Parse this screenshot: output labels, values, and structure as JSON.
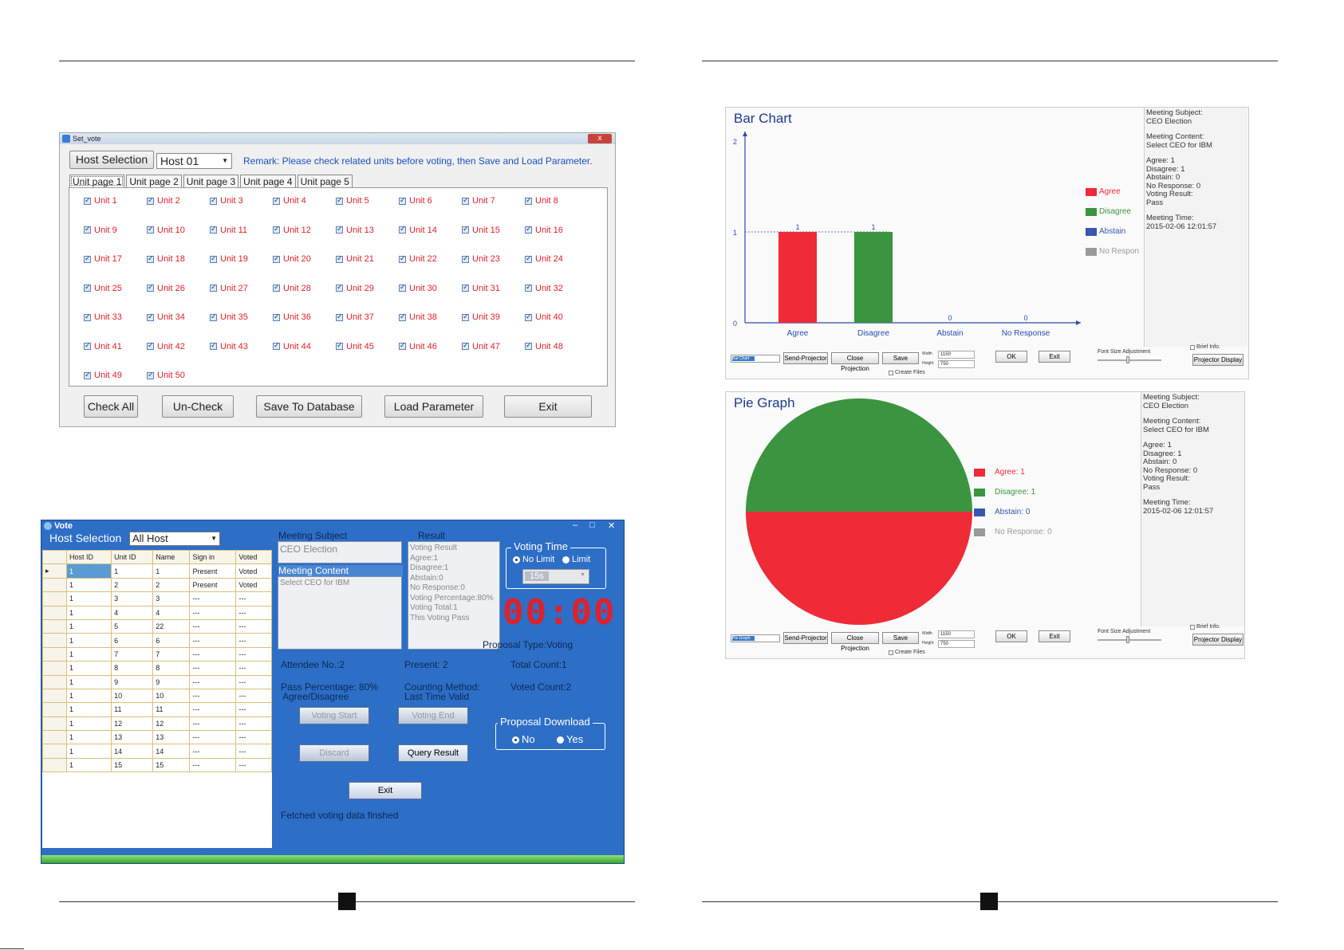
{
  "setvote": {
    "title": "Set_vote",
    "close": "x",
    "host_selection_button": "Host Selection",
    "host_value": "Host 01",
    "remark": "Remark: Please check related units before voting, then Save and Load  Parameter.",
    "tabs": [
      "Unit page 1",
      "Unit page 2",
      "Unit page 3",
      "Unit page 4",
      "Unit page 5"
    ],
    "units": [
      "Unit 1",
      "Unit 2",
      "Unit 3",
      "Unit 4",
      "Unit 5",
      "Unit 6",
      "Unit 7",
      "Unit 8",
      "Unit 9",
      "Unit 10",
      "Unit 11",
      "Unit 12",
      "Unit 13",
      "Unit 14",
      "Unit 15",
      "Unit 16",
      "Unit 17",
      "Unit 18",
      "Unit 19",
      "Unit 20",
      "Unit 21",
      "Unit 22",
      "Unit 23",
      "Unit 24",
      "Unit 25",
      "Unit 26",
      "Unit 27",
      "Unit 28",
      "Unit 29",
      "Unit 30",
      "Unit 31",
      "Unit 32",
      "Unit 33",
      "Unit 34",
      "Unit 35",
      "Unit 36",
      "Unit 37",
      "Unit 38",
      "Unit 39",
      "Unit 40",
      "Unit 41",
      "Unit 42",
      "Unit 43",
      "Unit 44",
      "Unit 45",
      "Unit 46",
      "Unit 47",
      "Unit 48",
      "Unit 49",
      "Unit 50"
    ],
    "buttons": {
      "check_all": "Check All",
      "uncheck": "Un-Check",
      "save_db": "Save To Database",
      "load_param": "Load Parameter",
      "exit": "Exit"
    }
  },
  "vote": {
    "title": "Vote",
    "win_controls": [
      "–",
      "□",
      "✕"
    ],
    "host_selection_label": "Host Selection",
    "host_value": "All Host",
    "grid_headers": [
      "Host ID",
      "Unit ID",
      "Name",
      "Sign in",
      "Voted"
    ],
    "grid_rows": [
      [
        "1",
        "1",
        "1",
        "Present",
        "Voted"
      ],
      [
        "1",
        "2",
        "2",
        "Present",
        "Voted"
      ],
      [
        "1",
        "3",
        "3",
        "---",
        "---"
      ],
      [
        "1",
        "4",
        "4",
        "---",
        "---"
      ],
      [
        "1",
        "5",
        "22",
        "---",
        "---"
      ],
      [
        "1",
        "6",
        "6",
        "---",
        "---"
      ],
      [
        "1",
        "7",
        "7",
        "---",
        "---"
      ],
      [
        "1",
        "8",
        "8",
        "---",
        "---"
      ],
      [
        "1",
        "9",
        "9",
        "---",
        "---"
      ],
      [
        "1",
        "10",
        "10",
        "---",
        "---"
      ],
      [
        "1",
        "11",
        "11",
        "---",
        "---"
      ],
      [
        "1",
        "12",
        "12",
        "---",
        "---"
      ],
      [
        "1",
        "13",
        "13",
        "---",
        "---"
      ],
      [
        "1",
        "14",
        "14",
        "---",
        "---"
      ],
      [
        "1",
        "15",
        "15",
        "---",
        "---"
      ]
    ],
    "meeting_subject_label": "Meeting Subject",
    "meeting_subject": "CEO Election",
    "meeting_content_label": "Meeting Content",
    "meeting_content": "Select CEO for IBM",
    "result_label": "Result",
    "result_lines": [
      "Voting Result",
      "Agree:1",
      "Disagree:1",
      "Abstain:0",
      "No Response:0",
      "Voting Percentage:80%",
      "Voting Total:1",
      "This Voting Pass"
    ],
    "voting_time_label": "Voting Time",
    "no_limit": "No Limit",
    "limit": "Limit",
    "time_value": "15s",
    "timer": "00:00",
    "proposal_type": "Proposal Type:Voting",
    "attendee_no": "Attendee No.:2",
    "present": "Present: 2",
    "total_count": "Total Count:1",
    "pass_percentage": "Pass Percentage:  80%",
    "pass_type": "Agree/Disagree",
    "counting_method": "Counting Method:",
    "counting_value": "Last Time Valid",
    "voted_count": "Voted Count:2",
    "btn_voting_start": "Voting Start",
    "btn_voting_end": "Voting End",
    "btn_discard": "Discard",
    "btn_query_result": "Query Result",
    "proposal_download_label": "Proposal Download",
    "opt_no": "No",
    "opt_yes": "Yes",
    "btn_exit": "Exit",
    "status": "Fetched voting data finshed"
  },
  "bar_window": {
    "title": "Bar Chart",
    "info": {
      "subject_label": "Meeting Subject:",
      "subject": "CEO Election",
      "content_label": "Meeting Content:",
      "content": "Select CEO for IBM",
      "agree": "Agree: 1",
      "disagree": "Disagree: 1",
      "abstain": "Abstain: 0",
      "no_response": "No Response: 0",
      "result_label": "Voting Result:",
      "result": "Pass",
      "time_label": "Meeting Time:",
      "time": "2015-02-06 12:01:57"
    },
    "toolbar": {
      "select": "Bar Chart",
      "send": "Send-Projector",
      "close": "Close Projection",
      "save": "Save",
      "width_label": "Width",
      "width": "1150",
      "height_label": "Height",
      "height": "750",
      "ok": "OK",
      "exit": "Exit",
      "font_adj": "Font Size Adjustment",
      "brief": "Brief Info.",
      "create": "Create Files",
      "proj_display": "Projector Display"
    }
  },
  "pie_window": {
    "title": "Pie Graph",
    "legend": [
      "Agree: 1",
      "Disagree: 1",
      "Abstain: 0",
      "No Response: 0"
    ],
    "info": {
      "subject_label": "Meeting Subject:",
      "subject": "CEO Election",
      "content_label": "Meeting Content:",
      "content": "Select CEO for IBM",
      "agree": "Agree: 1",
      "disagree": "Disagree: 1",
      "abstain": "Abstain: 0",
      "no_response": "No Response: 0",
      "result_label": "Voting Result:",
      "result": "Pass",
      "time_label": "Meeting Time:",
      "time": "2015-02-06 12:01:57"
    },
    "toolbar": {
      "select": "Pie Graph",
      "send": "Send-Projector",
      "close": "Close Projection",
      "save": "Save",
      "width_label": "Width",
      "width": "1150",
      "height_label": "Height",
      "height": "750",
      "ok": "OK",
      "exit": "Exit",
      "font_adj": "Font Size Adjustment",
      "brief": "Brief Info.",
      "create": "Create Files",
      "proj_display": "Projector Display"
    }
  },
  "colors": {
    "agree": "#ee2b36",
    "disagree": "#3a9440",
    "abstain": "#3a56b0",
    "no_response": "#999999"
  },
  "chart_data": [
    {
      "type": "bar",
      "title": "Bar Chart",
      "categories": [
        "Agree",
        "Disagree",
        "Abstain",
        "No Response"
      ],
      "values": [
        1,
        1,
        0,
        0
      ],
      "data_labels": [
        "1",
        "1",
        "0",
        "0"
      ],
      "yticks": [
        "0",
        "1",
        "2"
      ],
      "ylim": [
        0,
        2
      ],
      "legend": [
        "Agree",
        "Disagree",
        "Abstain",
        "No Respon"
      ],
      "legend_position": "right"
    },
    {
      "type": "pie",
      "title": "Pie Graph",
      "labels": [
        "Agree",
        "Disagree",
        "Abstain",
        "No Response"
      ],
      "values": [
        1,
        1,
        0,
        0
      ],
      "legend_position": "right"
    }
  ]
}
